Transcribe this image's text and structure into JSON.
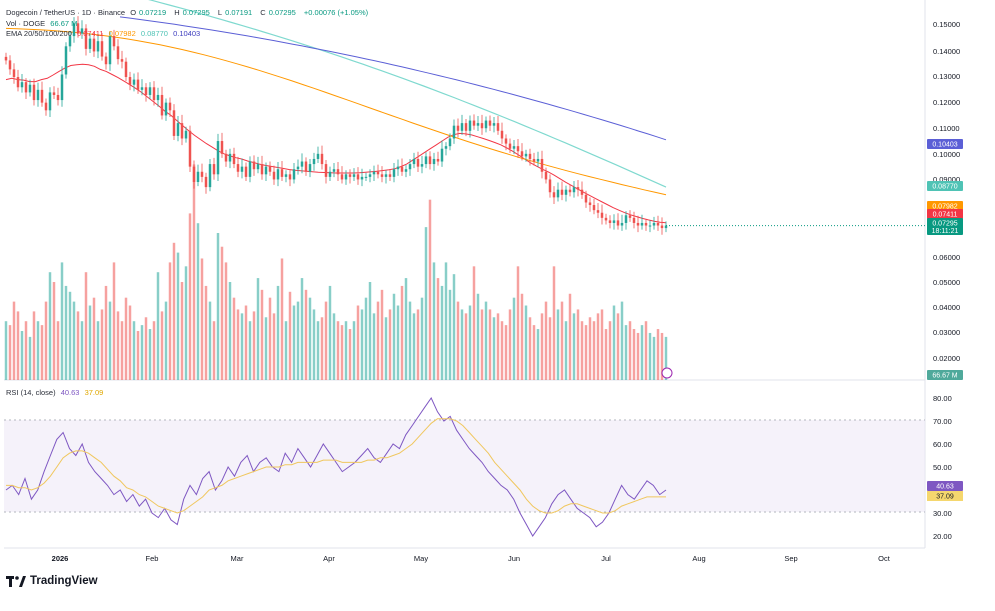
{
  "header": {
    "title": "Dogecoin / TetherUS · 1D · Binance",
    "open_label": "O",
    "open": "0.07219",
    "high_label": "H",
    "high": "0.07295",
    "low_label": "L",
    "low": "0.07191",
    "close_label": "C",
    "close": "0.07295",
    "change": "+0.00076 (+1.05%)"
  },
  "volume_legend": {
    "label": "Vol · DOGE",
    "value": "66.67 M"
  },
  "ema_legend": {
    "label": "EMA 20/50/100/200",
    "values": [
      "0.07411",
      "0.07982",
      "0.08770",
      "0.10403"
    ]
  },
  "rsi_legend": {
    "label": "RSI (14, close)",
    "rsi": "40.63",
    "ma": "37.09"
  },
  "brand": {
    "name": "TradingView"
  },
  "colors": {
    "up": "#26a69a",
    "down": "#ef5350",
    "ema20": "#f23645",
    "ema50": "#ff9800",
    "ema100": "#7fd9cf",
    "ema200": "#5b5fd6",
    "rsi": "#7e57c2",
    "rsi_ma": "#f0c75e"
  },
  "chart_data": [
    {
      "type": "candlestick",
      "title": "Dogecoin / TetherUS · 1D · Binance",
      "xlabel": "",
      "ylabel": "",
      "price_ticks": [
        "0.15000",
        "0.14000",
        "0.13000",
        "0.12000",
        "0.11000",
        "0.10000",
        "0.09000",
        "0.06000",
        "0.05000",
        "0.04000",
        "0.03000",
        "0.02000"
      ],
      "time_ticks": [
        "2026",
        "Feb",
        "Mar",
        "Apr",
        "May",
        "Jun",
        "Jul",
        "Aug",
        "Sep",
        "Oct"
      ],
      "last_price_label": "0.07295",
      "countdown_label": "18:11:21",
      "ema200_label": "0.10403",
      "ema100_label": "0.08770",
      "ema50_label": "0.07982",
      "ema20_label": "0.07411",
      "volume_label": "66.67 M",
      "closes": [
        0.1375,
        0.134,
        0.131,
        0.127,
        0.129,
        0.125,
        0.128,
        0.122,
        0.126,
        0.121,
        0.118,
        0.125,
        0.124,
        0.122,
        0.132,
        0.143,
        0.147,
        0.152,
        0.148,
        0.15,
        0.142,
        0.146,
        0.141,
        0.145,
        0.139,
        0.136,
        0.147,
        0.143,
        0.138,
        0.137,
        0.131,
        0.128,
        0.13,
        0.126,
        0.127,
        0.124,
        0.127,
        0.122,
        0.124,
        0.116,
        0.121,
        0.118,
        0.108,
        0.113,
        0.107,
        0.11,
        0.096,
        0.09,
        0.094,
        0.092,
        0.088,
        0.097,
        0.093,
        0.106,
        0.101,
        0.098,
        0.101,
        0.097,
        0.094,
        0.096,
        0.092,
        0.098,
        0.095,
        0.097,
        0.093,
        0.096,
        0.094,
        0.091,
        0.095,
        0.092,
        0.093,
        0.091,
        0.095,
        0.096,
        0.098,
        0.094,
        0.097,
        0.099,
        0.101,
        0.097,
        0.092,
        0.094,
        0.095,
        0.093,
        0.091,
        0.093,
        0.092,
        0.093,
        0.091,
        0.092,
        0.092,
        0.093,
        0.094,
        0.093,
        0.092,
        0.093,
        0.092,
        0.095,
        0.096,
        0.094,
        0.095,
        0.097,
        0.099,
        0.096,
        0.097,
        0.1,
        0.097,
        0.099,
        0.098,
        0.103,
        0.104,
        0.107,
        0.112,
        0.11,
        0.113,
        0.11,
        0.114,
        0.112,
        0.113,
        0.111,
        0.114,
        0.112,
        0.113,
        0.11,
        0.107,
        0.105,
        0.103,
        0.104,
        0.102,
        0.1,
        0.101,
        0.099,
        0.098,
        0.099,
        0.094,
        0.091,
        0.086,
        0.084,
        0.087,
        0.085,
        0.087,
        0.086,
        0.088,
        0.087,
        0.085,
        0.082,
        0.081,
        0.079,
        0.078,
        0.076,
        0.075,
        0.074,
        0.075,
        0.073,
        0.074,
        0.077,
        0.076,
        0.074,
        0.073,
        0.074,
        0.073,
        0.073,
        0.074,
        0.073,
        0.072,
        0.073
      ],
      "volumes_m": [
        30,
        28,
        40,
        35,
        25,
        30,
        22,
        35,
        30,
        28,
        40,
        55,
        50,
        30,
        60,
        48,
        45,
        40,
        35,
        30,
        55,
        38,
        42,
        30,
        36,
        48,
        40,
        60,
        35,
        30,
        42,
        38,
        30,
        25,
        28,
        32,
        26,
        30,
        55,
        35,
        40,
        60,
        70,
        65,
        50,
        58,
        85,
        110,
        80,
        62,
        48,
        40,
        30,
        75,
        68,
        60,
        50,
        42,
        36,
        34,
        38,
        30,
        35,
        52,
        46,
        32,
        42,
        34,
        48,
        62,
        30,
        45,
        38,
        40,
        52,
        46,
        42,
        36,
        30,
        32,
        40,
        48,
        34,
        30,
        28,
        30,
        26,
        30,
        38,
        36,
        42,
        50,
        34,
        40,
        46,
        32,
        36,
        44,
        38,
        48,
        52,
        40,
        34,
        36,
        42,
        78,
        92,
        60,
        52,
        48,
        60,
        46,
        54,
        40,
        36,
        34,
        38,
        58,
        44,
        36,
        40,
        36,
        32,
        34,
        30,
        28,
        36,
        42,
        58,
        44,
        38,
        32,
        28,
        26,
        34,
        40,
        32,
        58,
        36,
        40,
        30,
        44,
        34,
        36,
        30,
        28,
        32,
        30,
        34,
        36,
        26,
        30,
        38,
        34,
        40,
        28,
        30,
        26,
        24,
        28,
        30,
        24,
        22,
        26,
        24,
        22
      ],
      "ema20": [
        0.13,
        0.1305,
        0.13,
        0.1298,
        0.1292,
        0.1292,
        0.13,
        0.1305,
        0.1318,
        0.1332,
        0.1345,
        0.1355,
        0.1358,
        0.136,
        0.1358,
        0.1352,
        0.134,
        0.1332,
        0.132,
        0.1308,
        0.1294,
        0.128,
        0.1266,
        0.125,
        0.1232,
        0.1214,
        0.1196,
        0.1176,
        0.116,
        0.114,
        0.112,
        0.11,
        0.1082,
        0.1066,
        0.105,
        0.1036,
        0.1022,
        0.101,
        0.1002,
        0.0995,
        0.099,
        0.0982,
        0.0976,
        0.097,
        0.0965,
        0.0961,
        0.0957,
        0.0953,
        0.0949,
        0.0946,
        0.0944,
        0.0942,
        0.094,
        0.0938,
        0.0937,
        0.0936,
        0.0935,
        0.0935,
        0.0935,
        0.0935,
        0.0936,
        0.0938,
        0.094,
        0.0942,
        0.0945,
        0.0948,
        0.0952,
        0.096,
        0.097,
        0.0985,
        0.1,
        0.1015,
        0.103,
        0.1045,
        0.106,
        0.1075,
        0.1085,
        0.109,
        0.1088,
        0.1084,
        0.1077,
        0.107,
        0.1062,
        0.1054,
        0.1045,
        0.1033,
        0.102,
        0.1005,
        0.099,
        0.0975,
        0.0962,
        0.095,
        0.094,
        0.0927,
        0.0913,
        0.0899,
        0.0886,
        0.0873,
        0.086,
        0.0848,
        0.0836,
        0.0824,
        0.0812,
        0.08,
        0.079,
        0.078,
        0.0772,
        0.0765,
        0.0758,
        0.0752,
        0.0747,
        0.0743,
        0.0741
      ],
      "rsi": [
        40,
        42,
        38,
        45,
        36,
        40,
        48,
        55,
        62,
        65,
        58,
        55,
        60,
        52,
        48,
        45,
        42,
        38,
        40,
        35,
        38,
        33,
        36,
        30,
        28,
        32,
        27,
        25,
        36,
        42,
        38,
        45,
        48,
        40,
        44,
        50,
        46,
        52,
        55,
        48,
        52,
        54,
        50,
        48,
        56,
        52,
        58,
        54,
        50,
        55,
        60,
        56,
        52,
        48,
        50,
        52,
        55,
        58,
        54,
        52,
        56,
        60,
        58,
        64,
        68,
        72,
        76,
        80,
        74,
        70,
        72,
        66,
        62,
        58,
        55,
        52,
        48,
        45,
        42,
        40,
        36,
        30,
        25,
        20,
        24,
        28,
        34,
        38,
        40,
        36,
        32,
        30,
        28,
        24,
        26,
        30,
        36,
        42,
        38,
        36,
        40,
        44,
        42,
        38,
        40
      ],
      "rsi_ma": [
        42,
        42,
        41,
        41,
        40,
        41,
        43,
        46,
        50,
        54,
        56,
        57,
        57,
        56,
        54,
        52,
        49,
        46,
        44,
        41,
        40,
        38,
        37,
        35,
        33,
        32,
        31,
        30,
        31,
        33,
        35,
        37,
        40,
        41,
        42,
        44,
        45,
        46,
        47,
        48,
        49,
        50,
        50,
        50,
        51,
        51,
        52,
        52,
        52,
        52,
        53,
        53,
        53,
        52,
        52,
        52,
        52,
        53,
        53,
        54,
        54,
        55,
        56,
        58,
        60,
        63,
        66,
        69,
        71,
        71,
        71,
        70,
        68,
        65,
        62,
        59,
        56,
        52,
        49,
        46,
        43,
        40,
        36,
        33,
        31,
        30,
        30,
        31,
        33,
        34,
        34,
        33,
        32,
        31,
        30,
        30,
        31,
        33,
        34,
        35,
        36,
        37,
        37,
        37,
        37
      ]
    }
  ]
}
